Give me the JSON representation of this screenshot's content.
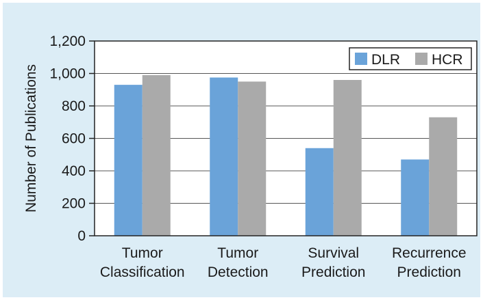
{
  "chart_data": {
    "type": "bar",
    "categories": [
      [
        "Tumor",
        "Classification"
      ],
      [
        "Tumor",
        "Detection"
      ],
      [
        "Survival",
        "Prediction"
      ],
      [
        "Recurrence",
        "Prediction"
      ]
    ],
    "series": [
      {
        "name": "DLR",
        "color": "#6aa3d9",
        "values": [
          930,
          975,
          540,
          470
        ]
      },
      {
        "name": "HCR",
        "color": "#aaaaaa",
        "values": [
          990,
          950,
          960,
          730
        ]
      }
    ],
    "ylabel": "Number of Publications",
    "ylim": [
      0,
      1200
    ],
    "yticks": [
      0,
      200,
      400,
      600,
      800,
      1000,
      1200
    ],
    "ytick_labels": [
      "0",
      "200",
      "400",
      "600",
      "800",
      "1,000",
      "1,200"
    ],
    "grid": true,
    "legend_position": "top-right"
  },
  "colors": {
    "background": "#dcedf6",
    "plot_area": "#ffffff",
    "grid": "#555555",
    "axis": "#222222"
  }
}
